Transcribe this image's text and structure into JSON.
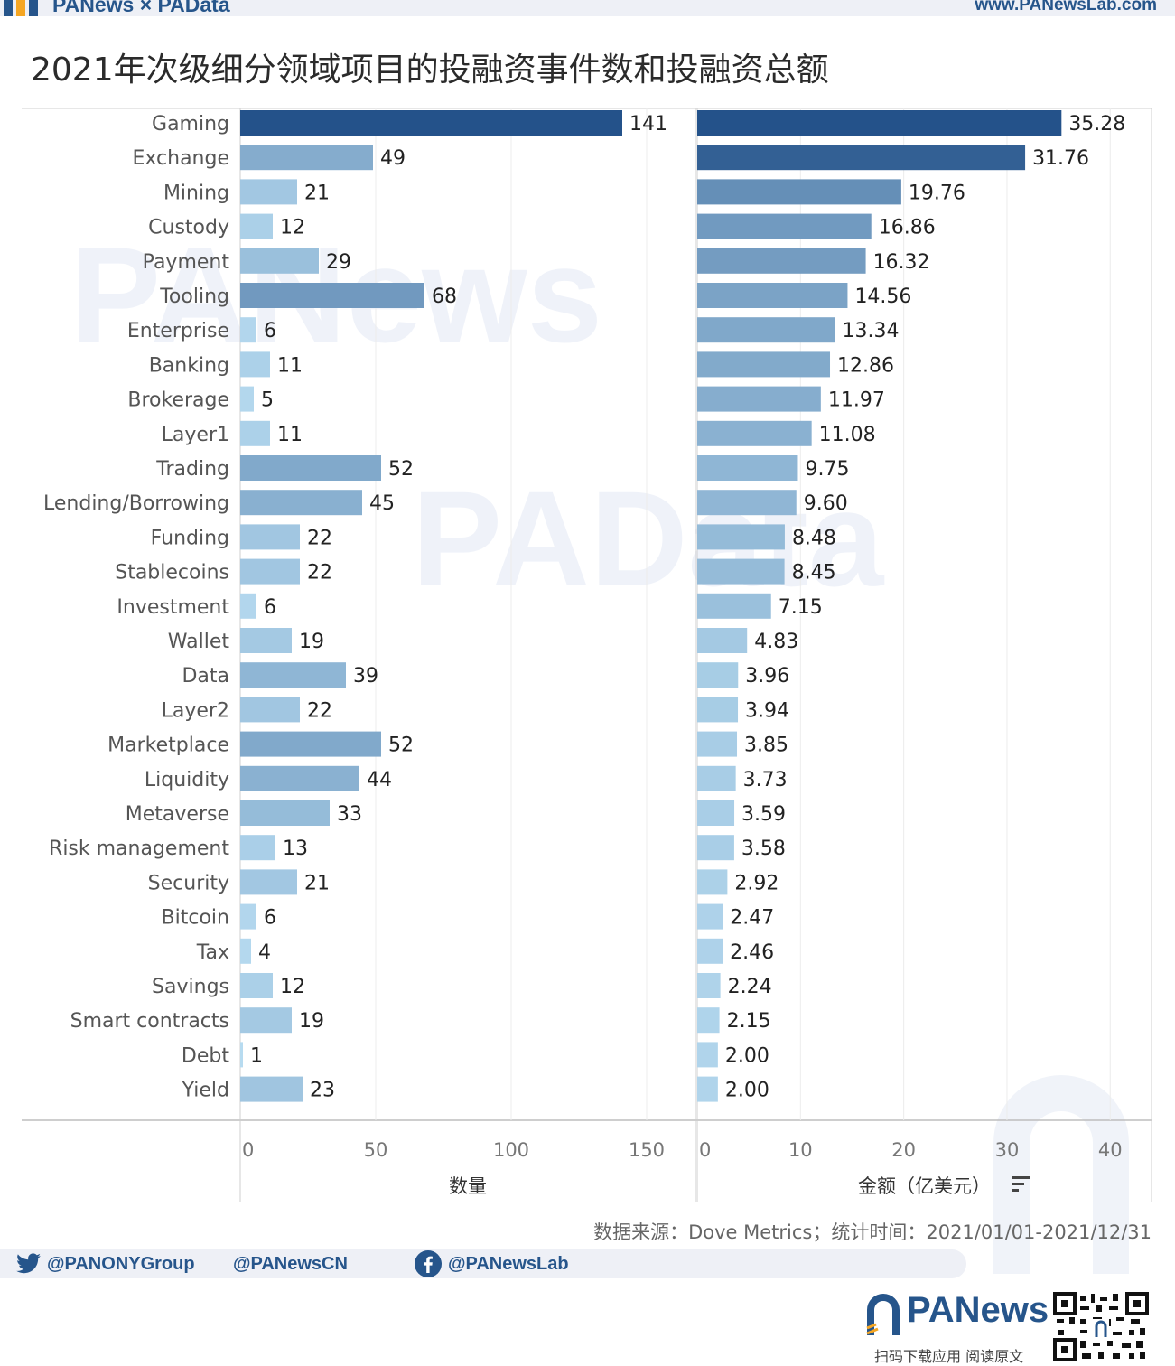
{
  "header": {
    "brand": "PANews × PAData",
    "url": "www.PANewsLab.com"
  },
  "title": "2021年次级细分领域项目的投融资事件数和投融资总额",
  "watermarks": {
    "wm1": "PANews",
    "wm2": "PAData"
  },
  "chart_data": {
    "type": "bar",
    "orientation": "horizontal",
    "categories": [
      "Gaming",
      "Exchange",
      "Mining",
      "Custody",
      "Payment",
      "Tooling",
      "Enterprise",
      "Banking",
      "Brokerage",
      "Layer1",
      "Trading",
      "Lending/Borrowing",
      "Funding",
      "Stablecoins",
      "Investment",
      "Wallet",
      "Data",
      "Layer2",
      "Marketplace",
      "Liquidity",
      "Metaverse",
      "Risk management",
      "Security",
      "Bitcoin",
      "Tax",
      "Savings",
      "Smart contracts",
      "Debt",
      "Yield"
    ],
    "series": [
      {
        "name": "数量",
        "values": [
          141,
          49,
          21,
          12,
          29,
          68,
          6,
          11,
          5,
          11,
          52,
          45,
          22,
          22,
          6,
          19,
          39,
          22,
          52,
          44,
          33,
          13,
          21,
          6,
          4,
          12,
          19,
          1,
          23
        ],
        "labels": [
          "141",
          "49",
          "21",
          "12",
          "29",
          "68",
          "6",
          "11",
          "5",
          "11",
          "52",
          "45",
          "22",
          "22",
          "6",
          "19",
          "39",
          "22",
          "52",
          "44",
          "33",
          "13",
          "21",
          "6",
          "4",
          "12",
          "19",
          "1",
          "23"
        ],
        "xlim": [
          0,
          168
        ],
        "ticks": [
          0,
          50,
          100,
          150
        ],
        "tick_labels": [
          "0",
          "50",
          "100",
          "150"
        ],
        "xlabel": "数量"
      },
      {
        "name": "金额（亿美元）",
        "values": [
          35.28,
          31.76,
          19.76,
          16.86,
          16.32,
          14.56,
          13.34,
          12.86,
          11.97,
          11.08,
          9.75,
          9.6,
          8.48,
          8.45,
          7.15,
          4.83,
          3.96,
          3.94,
          3.85,
          3.73,
          3.59,
          3.58,
          2.92,
          2.47,
          2.46,
          2.24,
          2.15,
          2.0,
          2.0
        ],
        "labels": [
          "35.28",
          "31.76",
          "19.76",
          "16.86",
          "16.32",
          "14.56",
          "13.34",
          "12.86",
          "11.97",
          "11.08",
          "9.75",
          "9.60",
          "8.48",
          "8.45",
          "7.15",
          "4.83",
          "3.96",
          "3.94",
          "3.85",
          "3.73",
          "3.59",
          "3.58",
          "2.92",
          "2.47",
          "2.46",
          "2.24",
          "2.15",
          "2.00",
          "2.00"
        ],
        "xlim": [
          0,
          44
        ],
        "ticks": [
          0,
          10,
          20,
          30,
          40
        ],
        "tick_labels": [
          "0",
          "10",
          "20",
          "30",
          "40"
        ],
        "xlabel": "金额（亿美元）",
        "sorted": "descending"
      }
    ],
    "color_scale": [
      "#b8dcf1",
      "#24528a"
    ]
  },
  "colors": {
    "brand": "#26558b",
    "bar_light": "#b8dcf1",
    "bar_dark": "#24528a"
  },
  "source": "数据来源：Dove Metrics；统计时间：2021/01/01-2021/12/31",
  "social": {
    "twitter": "@PANONYGroup",
    "weibo": "@PANewsCN",
    "facebook": "@PANewsLab"
  },
  "footer": {
    "brand": "PANews",
    "scan_text": "扫码下载应用  阅读原文"
  },
  "icons": [
    "twitter-icon",
    "facebook-icon",
    "panews-logo-icon",
    "qr-code",
    "sort-icon"
  ]
}
